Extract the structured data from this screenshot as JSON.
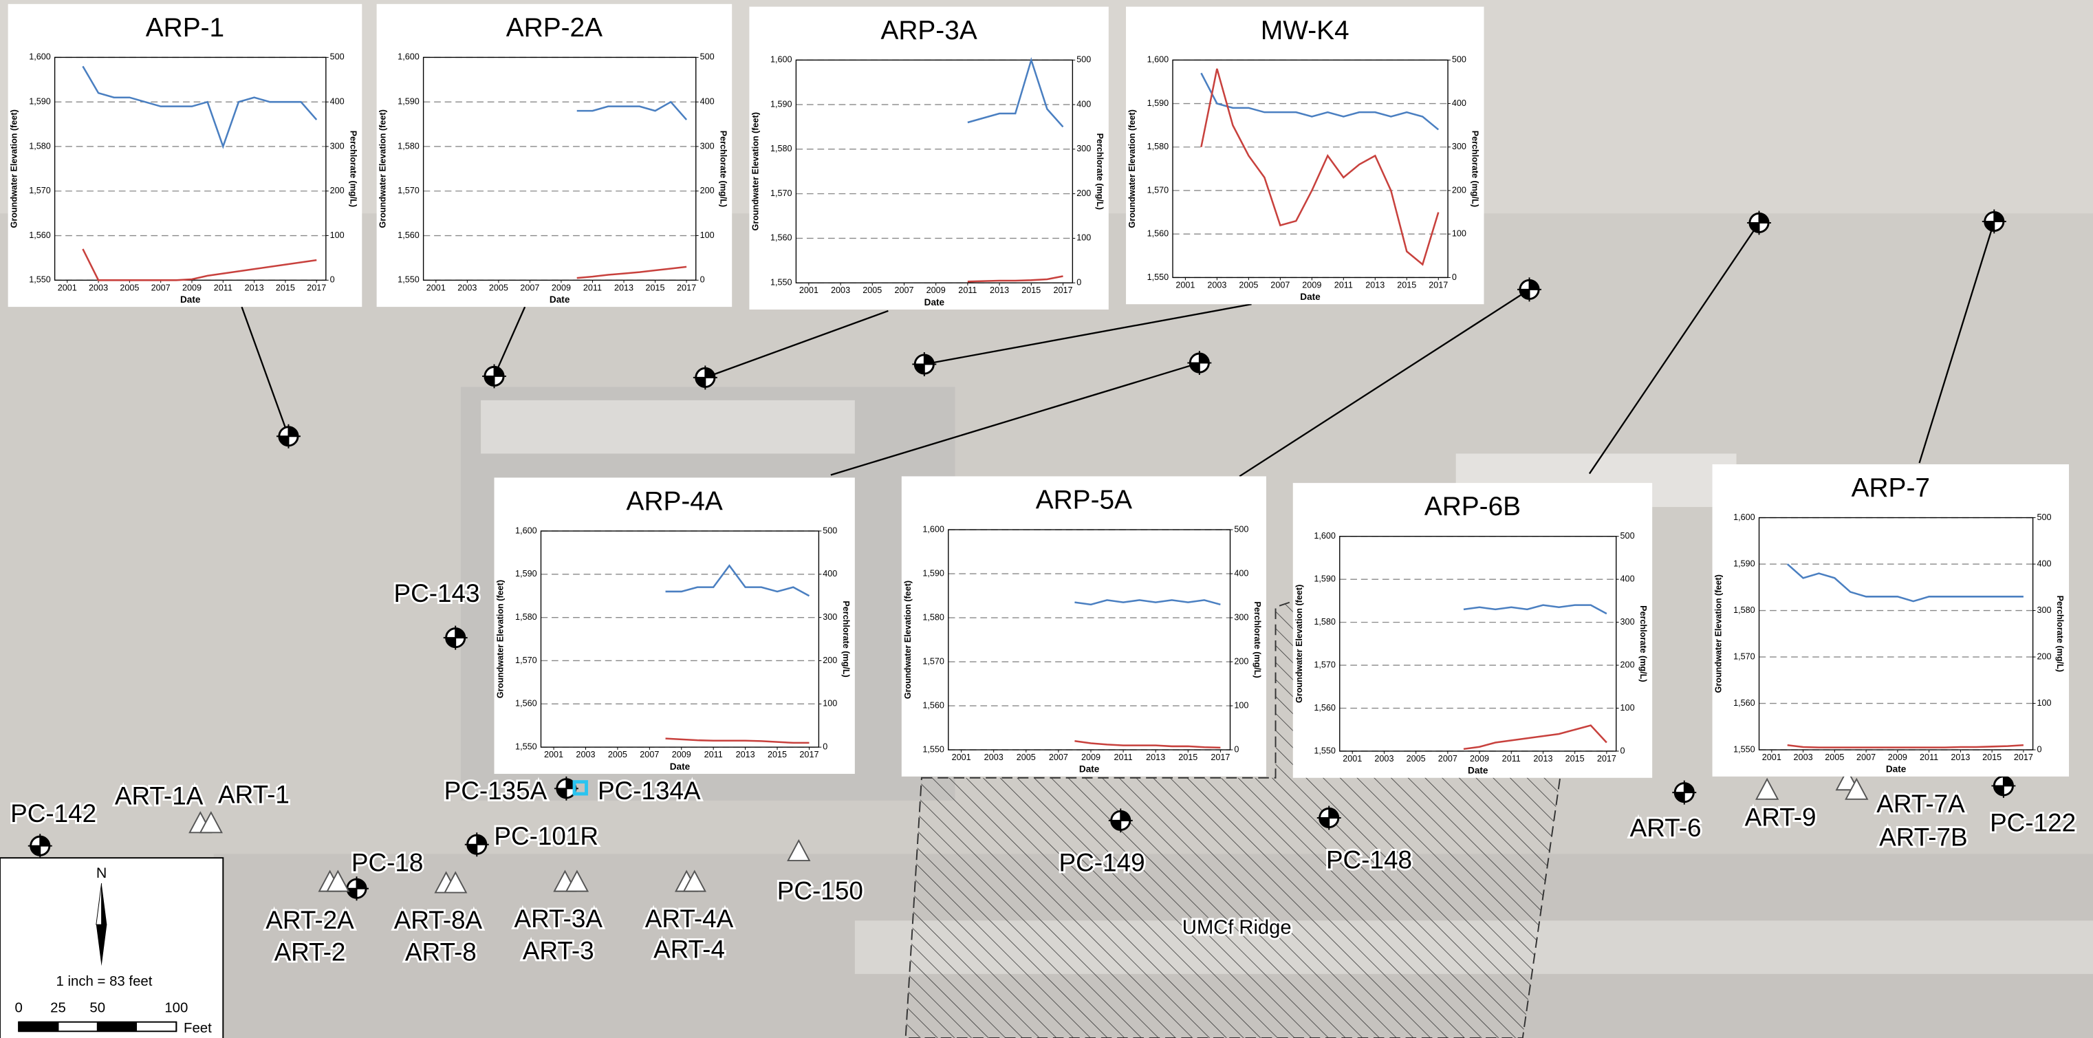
{
  "chart_data": [
    {
      "type": "line",
      "title": "ARP-1",
      "x_label": "Date",
      "y_label": "Groundwater Elevation (feet)",
      "y2_label": "Perchlorate (mg/L)",
      "x": [
        2001,
        2002,
        2003,
        2004,
        2005,
        2006,
        2007,
        2008,
        2009,
        2010,
        2011,
        2012,
        2013,
        2014,
        2015,
        2016,
        2017
      ],
      "xlim": [
        2000.2,
        2017.6
      ],
      "xticks": [
        2001,
        2003,
        2005,
        2007,
        2009,
        2011,
        2013,
        2015,
        2017
      ],
      "ylim": [
        1550,
        1600
      ],
      "yticks": [
        {
          "value": 1550,
          "label": "1,550"
        },
        {
          "value": 1560,
          "label": "1,560"
        },
        {
          "value": 1570,
          "label": "1,570"
        },
        {
          "value": 1580,
          "label": "1,580"
        },
        {
          "value": 1590,
          "label": "1,590"
        },
        {
          "value": 1600,
          "label": "1,600"
        }
      ],
      "y2lim": [
        0,
        500
      ],
      "y2ticks": [
        0,
        100,
        200,
        300,
        400,
        500
      ],
      "grid": true,
      "series": [
        {
          "color": "#4a7fc1",
          "values": [
            null,
            1598,
            1592,
            1591,
            1591,
            1590,
            1589,
            1589,
            1589,
            1590,
            1580,
            1590,
            1591,
            1590,
            1590,
            1590,
            1586
          ]
        },
        {
          "color": "#c8413d",
          "axis": "y2",
          "values": [
            null,
            70,
            0,
            0,
            0,
            0,
            0,
            0,
            2,
            10,
            15,
            20,
            25,
            30,
            35,
            40,
            45
          ]
        }
      ]
    },
    {
      "type": "line",
      "title": "ARP-2A",
      "x_label": "Date",
      "y_label": "Groundwater Elevation (feet)",
      "y2_label": "Perchlorate (mg/L)",
      "x": [
        2001,
        2002,
        2003,
        2004,
        2005,
        2006,
        2007,
        2008,
        2009,
        2010,
        2011,
        2012,
        2013,
        2014,
        2015,
        2016,
        2017
      ],
      "xlim": [
        2000.2,
        2017.6
      ],
      "xticks": [
        2001,
        2003,
        2005,
        2007,
        2009,
        2011,
        2013,
        2015,
        2017
      ],
      "ylim": [
        1550,
        1600
      ],
      "yticks": [
        {
          "value": 1550,
          "label": "1,550"
        },
        {
          "value": 1560,
          "label": "1,560"
        },
        {
          "value": 1570,
          "label": "1,570"
        },
        {
          "value": 1580,
          "label": "1,580"
        },
        {
          "value": 1590,
          "label": "1,590"
        },
        {
          "value": 1600,
          "label": "1,600"
        }
      ],
      "y2lim": [
        0,
        500
      ],
      "y2ticks": [
        0,
        100,
        200,
        300,
        400,
        500
      ],
      "grid": true,
      "series": [
        {
          "color": "#4a7fc1",
          "values": [
            null,
            null,
            null,
            null,
            null,
            null,
            null,
            null,
            null,
            1588,
            1588,
            1589,
            1589,
            1589,
            1588,
            1590,
            1586
          ]
        },
        {
          "color": "#c8413d",
          "axis": "y2",
          "values": [
            null,
            null,
            null,
            null,
            null,
            null,
            null,
            null,
            null,
            5,
            8,
            12,
            15,
            18,
            22,
            26,
            30
          ]
        }
      ]
    },
    {
      "type": "line",
      "title": "ARP-3A",
      "x_label": "Date",
      "y_label": "Groundwater Elevation (feet)",
      "y2_label": "Perchlorate (mg/L)",
      "x": [
        2001,
        2002,
        2003,
        2004,
        2005,
        2006,
        2007,
        2008,
        2009,
        2010,
        2011,
        2012,
        2013,
        2014,
        2015,
        2016,
        2017
      ],
      "xlim": [
        2000.2,
        2017.6
      ],
      "xticks": [
        2001,
        2003,
        2005,
        2007,
        2009,
        2011,
        2013,
        2015,
        2017
      ],
      "ylim": [
        1550,
        1600
      ],
      "yticks": [
        {
          "value": 1550,
          "label": "1,550"
        },
        {
          "value": 1560,
          "label": "1,560"
        },
        {
          "value": 1570,
          "label": "1,570"
        },
        {
          "value": 1580,
          "label": "1,580"
        },
        {
          "value": 1590,
          "label": "1,590"
        },
        {
          "value": 1600,
          "label": "1,600"
        }
      ],
      "y2lim": [
        0,
        500
      ],
      "y2ticks": [
        0,
        100,
        200,
        300,
        400,
        500
      ],
      "grid": true,
      "series": [
        {
          "color": "#4a7fc1",
          "values": [
            null,
            null,
            null,
            null,
            null,
            null,
            null,
            null,
            null,
            null,
            1586,
            1587,
            1588,
            1588,
            1600,
            1589,
            1585
          ]
        },
        {
          "color": "#c8413d",
          "axis": "y2",
          "values": [
            null,
            null,
            null,
            null,
            null,
            null,
            null,
            null,
            null,
            null,
            3,
            4,
            5,
            5,
            6,
            8,
            15
          ]
        }
      ]
    },
    {
      "type": "line",
      "title": "MW-K4",
      "x_label": "Date",
      "y_label": "Groundwater Elevation (feet)",
      "y2_label": "Perchlorate (mg/L)",
      "x": [
        2001,
        2002,
        2003,
        2004,
        2005,
        2006,
        2007,
        2008,
        2009,
        2010,
        2011,
        2012,
        2013,
        2014,
        2015,
        2016,
        2017
      ],
      "xlim": [
        2000.2,
        2017.6
      ],
      "xticks": [
        2001,
        2003,
        2005,
        2007,
        2009,
        2011,
        2013,
        2015,
        2017
      ],
      "ylim": [
        1550,
        1600
      ],
      "yticks": [
        {
          "value": 1550,
          "label": "1,550"
        },
        {
          "value": 1560,
          "label": "1,560"
        },
        {
          "value": 1570,
          "label": "1,570"
        },
        {
          "value": 1580,
          "label": "1,580"
        },
        {
          "value": 1590,
          "label": "1,590"
        },
        {
          "value": 1600,
          "label": "1,600"
        }
      ],
      "y2lim": [
        0,
        500
      ],
      "y2ticks": [
        0,
        100,
        200,
        300,
        400,
        500
      ],
      "grid": true,
      "series": [
        {
          "color": "#4a7fc1",
          "values": [
            null,
            1597,
            1590,
            1589,
            1589,
            1588,
            1588,
            1588,
            1587,
            1588,
            1587,
            1588,
            1588,
            1587,
            1588,
            1587,
            1584
          ]
        },
        {
          "color": "#c8413d",
          "axis": "y2",
          "values": [
            null,
            300,
            480,
            350,
            280,
            230,
            120,
            130,
            200,
            280,
            230,
            260,
            280,
            200,
            60,
            30,
            150
          ]
        }
      ]
    },
    {
      "type": "line",
      "title": "ARP-4A",
      "x_label": "Date",
      "y_label": "Groundwater Elevation (feet)",
      "y2_label": "Perchlorate (mg/L)",
      "x": [
        2001,
        2002,
        2003,
        2004,
        2005,
        2006,
        2007,
        2008,
        2009,
        2010,
        2011,
        2012,
        2013,
        2014,
        2015,
        2016,
        2017
      ],
      "xlim": [
        2000.2,
        2017.6
      ],
      "xticks": [
        2001,
        2003,
        2005,
        2007,
        2009,
        2011,
        2013,
        2015,
        2017
      ],
      "ylim": [
        1550,
        1600
      ],
      "yticks": [
        {
          "value": 1550,
          "label": "1,550"
        },
        {
          "value": 1560,
          "label": "1,560"
        },
        {
          "value": 1570,
          "label": "1,570"
        },
        {
          "value": 1580,
          "label": "1,580"
        },
        {
          "value": 1590,
          "label": "1,590"
        },
        {
          "value": 1600,
          "label": "1,600"
        }
      ],
      "y2lim": [
        0,
        500
      ],
      "y2ticks": [
        0,
        100,
        200,
        300,
        400,
        500
      ],
      "grid": true,
      "series": [
        {
          "color": "#4a7fc1",
          "values": [
            null,
            null,
            null,
            null,
            null,
            null,
            null,
            1586,
            1586,
            1587,
            1587,
            1592,
            1587,
            1587,
            1586,
            1587,
            1585
          ]
        },
        {
          "color": "#c8413d",
          "axis": "y2",
          "values": [
            null,
            null,
            null,
            null,
            null,
            null,
            null,
            20,
            18,
            16,
            15,
            15,
            15,
            14,
            12,
            10,
            10
          ]
        }
      ]
    },
    {
      "type": "line",
      "title": "ARP-5A",
      "x_label": "Date",
      "y_label": "Groundwater Elevation (feet)",
      "y2_label": "Perchlorate (mg/L)",
      "x": [
        2001,
        2002,
        2003,
        2004,
        2005,
        2006,
        2007,
        2008,
        2009,
        2010,
        2011,
        2012,
        2013,
        2014,
        2015,
        2016,
        2017
      ],
      "xlim": [
        2000.2,
        2017.6
      ],
      "xticks": [
        2001,
        2003,
        2005,
        2007,
        2009,
        2011,
        2013,
        2015,
        2017
      ],
      "ylim": [
        1550,
        1600
      ],
      "yticks": [
        {
          "value": 1550,
          "label": "1,550"
        },
        {
          "value": 1560,
          "label": "1,560"
        },
        {
          "value": 1570,
          "label": "1,570"
        },
        {
          "value": 1580,
          "label": "1,580"
        },
        {
          "value": 1590,
          "label": "1,590"
        },
        {
          "value": 1600,
          "label": "1,600"
        }
      ],
      "y2lim": [
        0,
        500
      ],
      "y2ticks": [
        0,
        100,
        200,
        300,
        400,
        500
      ],
      "grid": true,
      "series": [
        {
          "color": "#4a7fc1",
          "values": [
            null,
            null,
            null,
            null,
            null,
            null,
            null,
            1583.5,
            1583,
            1584,
            1583.5,
            1584,
            1583.5,
            1584,
            1583.5,
            1584,
            1583
          ]
        },
        {
          "color": "#c8413d",
          "axis": "y2",
          "values": [
            null,
            null,
            null,
            null,
            null,
            null,
            null,
            20,
            15,
            12,
            10,
            10,
            10,
            8,
            8,
            6,
            5
          ]
        }
      ]
    },
    {
      "type": "line",
      "title": "ARP-6B",
      "x_label": "Date",
      "y_label": "Groundwater Elevation (feet)",
      "y2_label": "Perchlorate (mg/L)",
      "x": [
        2001,
        2002,
        2003,
        2004,
        2005,
        2006,
        2007,
        2008,
        2009,
        2010,
        2011,
        2012,
        2013,
        2014,
        2015,
        2016,
        2017
      ],
      "xlim": [
        2000.2,
        2017.6
      ],
      "xticks": [
        2001,
        2003,
        2005,
        2007,
        2009,
        2011,
        2013,
        2015,
        2017
      ],
      "ylim": [
        1550,
        1600
      ],
      "yticks": [
        {
          "value": 1550,
          "label": "1,550"
        },
        {
          "value": 1560,
          "label": "1,560"
        },
        {
          "value": 1570,
          "label": "1,570"
        },
        {
          "value": 1580,
          "label": "1,580"
        },
        {
          "value": 1590,
          "label": "1,590"
        },
        {
          "value": 1600,
          "label": "1,600"
        }
      ],
      "y2lim": [
        0,
        500
      ],
      "y2ticks": [
        0,
        100,
        200,
        300,
        400,
        500
      ],
      "grid": true,
      "series": [
        {
          "color": "#4a7fc1",
          "values": [
            null,
            null,
            null,
            null,
            null,
            null,
            null,
            1583,
            1583.5,
            1583,
            1583.5,
            1583,
            1584,
            1583.5,
            1584,
            1584,
            1582
          ]
        },
        {
          "color": "#c8413d",
          "axis": "y2",
          "values": [
            null,
            null,
            null,
            null,
            null,
            null,
            null,
            5,
            10,
            20,
            25,
            30,
            35,
            40,
            50,
            60,
            20
          ]
        }
      ]
    },
    {
      "type": "line",
      "title": "ARP-7",
      "x_label": "Date",
      "y_label": "Groundwater Elevation (feet)",
      "y2_label": "Perchlorate (mg/L)",
      "x": [
        2001,
        2002,
        2003,
        2004,
        2005,
        2006,
        2007,
        2008,
        2009,
        2010,
        2011,
        2012,
        2013,
        2014,
        2015,
        2016,
        2017
      ],
      "xlim": [
        2000.2,
        2017.6
      ],
      "xticks": [
        2001,
        2003,
        2005,
        2007,
        2009,
        2011,
        2013,
        2015,
        2017
      ],
      "ylim": [
        1550,
        1600
      ],
      "yticks": [
        {
          "value": 1550,
          "label": "1,550"
        },
        {
          "value": 1560,
          "label": "1,560"
        },
        {
          "value": 1570,
          "label": "1,570"
        },
        {
          "value": 1580,
          "label": "1,580"
        },
        {
          "value": 1590,
          "label": "1,590"
        },
        {
          "value": 1600,
          "label": "1,600"
        }
      ],
      "y2lim": [
        0,
        500
      ],
      "y2ticks": [
        0,
        100,
        200,
        300,
        400,
        500
      ],
      "grid": true,
      "series": [
        {
          "color": "#4a7fc1",
          "values": [
            null,
            1590,
            1587,
            1588,
            1587,
            1584,
            1583,
            1583,
            1583,
            1582,
            1583,
            1583,
            1583,
            1583,
            1583,
            1583,
            1583
          ]
        },
        {
          "color": "#c8413d",
          "axis": "y2",
          "values": [
            null,
            10,
            6,
            5,
            5,
            5,
            5,
            5,
            5,
            5,
            5,
            5,
            6,
            6,
            7,
            8,
            10
          ]
        }
      ]
    }
  ],
  "map_labels": [
    "PC-143",
    "PC-135A",
    "PC-134A",
    "PC-101R",
    "PC-18",
    "PC-142",
    "ART-1A",
    "ART-1",
    "ART-2A",
    "ART-2",
    "ART-8A",
    "ART-8",
    "ART-3A",
    "ART-3",
    "ART-4A",
    "ART-4",
    "PC-150",
    "PC-149",
    "PC-148",
    "ART-6",
    "ART-9",
    "ART-7A",
    "ART-7B",
    "PC-122",
    "UMCf Ridge"
  ],
  "legend": {
    "north": "N",
    "scale_text": "1 inch = 83 feet",
    "scale_ticks": [
      0,
      25,
      50,
      100
    ],
    "unit": "Feet"
  }
}
